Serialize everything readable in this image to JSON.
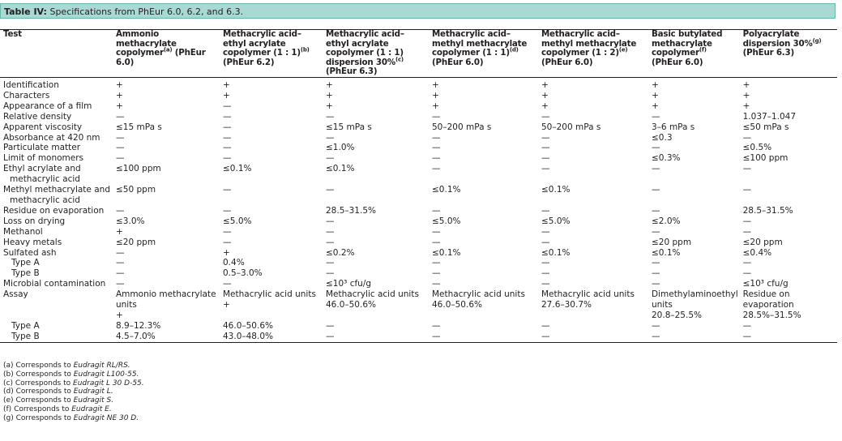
{
  "title": {
    "label": "Table IV:",
    "text": "Specifications from PhEur 6.0, 6.2, and 6.3."
  },
  "header": {
    "columns": [
      {
        "name": "Test"
      },
      {
        "name": "Ammonio methacrylate copolymer",
        "sup": "(a)",
        "edition": "(PhEur 6.0)"
      },
      {
        "name": "Methacrylic acid–ethyl acrylate copolymer (1 : 1)",
        "sup": "(b)",
        "edition": "(PhEur 6.2)"
      },
      {
        "name": "Methacrylic acid–ethyl acrylate copolymer (1 : 1) dispersion 30%",
        "sup": "(c)",
        "edition": "(PhEur 6.3)"
      },
      {
        "name": "Methacrylic acid–methyl methacrylate copolymer (1 : 1)",
        "sup": "(d)",
        "edition": "(PhEur 6.0)"
      },
      {
        "name": "Methacrylic acid–methyl methacrylate copolymer (1 : 2)",
        "sup": "(e)",
        "edition": "(PhEur 6.0)"
      },
      {
        "name": "Basic butylated methacrylate copolymer",
        "sup": "(f)",
        "edition": "(PhEur 6.0)"
      },
      {
        "name": "Polyacrylate dispersion 30%",
        "sup": "(g)",
        "edition": "(PhEur 6.3)"
      }
    ]
  },
  "table": {
    "rows": [
      {
        "label": "Identification",
        "cells": [
          "+",
          "+",
          "+",
          "+",
          "+",
          "+",
          "+"
        ]
      },
      {
        "label": "Characters",
        "cells": [
          "+",
          "+",
          "+",
          "+",
          "+",
          "+",
          "+"
        ]
      },
      {
        "label": "Appearance of a film",
        "cells": [
          "+",
          "—",
          "+",
          "+",
          "+",
          "+",
          "+"
        ]
      },
      {
        "label": "Relative density",
        "cells": [
          "—",
          "—",
          "—",
          "—",
          "—",
          "—",
          "1.037–1.047"
        ]
      },
      {
        "label": "Apparent viscosity",
        "cells": [
          "≤15 mPa s",
          "—",
          "≤15 mPa s",
          "50–200 mPa s",
          "50–200 mPa s",
          "3–6 mPa s",
          "≤50 mPa s"
        ]
      },
      {
        "label": "Absorbance at 420 nm",
        "cells": [
          "—",
          "—",
          "—",
          "—",
          "—",
          "≤0.3",
          "—"
        ]
      },
      {
        "label": "Particulate matter",
        "cells": [
          "—",
          "—",
          "≤1.0%",
          "—",
          "—",
          "—",
          "≤0.5%"
        ]
      },
      {
        "label": "Limit of monomers",
        "cells": [
          "—",
          "—",
          "—",
          "—",
          "—",
          "≤0.3%",
          "≤100 ppm"
        ]
      },
      {
        "label": "Ethyl acrylate and methacrylic acid",
        "cells": [
          "≤100 ppm",
          "≤0.1%",
          "≤0.1%",
          "—",
          "—",
          "—",
          "—"
        ]
      },
      {
        "label": "Methyl methacrylate and methacrylic acid",
        "cells": [
          "≤50 ppm",
          "—",
          "—",
          "≤0.1%",
          "≤0.1%",
          "—",
          "—"
        ]
      },
      {
        "label": "Residue on evaporation",
        "cells": [
          "—",
          "—",
          "28.5–31.5%",
          "—",
          "—",
          "—",
          "28.5–31.5%"
        ]
      },
      {
        "label": "Loss on drying",
        "cells": [
          "≤3.0%",
          "≤5.0%",
          "—",
          "≤5.0%",
          "≤5.0%",
          "≤2.0%",
          "—"
        ]
      },
      {
        "label": "Methanol",
        "cells": [
          "+",
          "—",
          "—",
          "—",
          "—",
          "—",
          "—"
        ]
      },
      {
        "label": "Heavy metals",
        "cells": [
          "≤20 ppm",
          "—",
          "—",
          "—",
          "—",
          "≤20 ppm",
          "≤20 ppm"
        ]
      },
      {
        "label": "Sulfated ash",
        "cells": [
          "—",
          "+",
          "≤0.2%",
          "≤0.1%",
          "≤0.1%",
          "≤0.1%",
          "≤0.4%"
        ]
      },
      {
        "label": "Type A",
        "indent": true,
        "cells": [
          "—",
          "0.4%",
          "—",
          "—",
          "—",
          "—",
          "—"
        ]
      },
      {
        "label": "Type B",
        "indent": true,
        "cells": [
          "—",
          "0.5–3.0%",
          "—",
          "—",
          "—",
          "—",
          "—"
        ]
      },
      {
        "label": "Microbial contamination",
        "cells": [
          "—",
          "—",
          "≤10³ cfu/g",
          "—",
          "—",
          "—",
          "≤10³ cfu/g"
        ]
      },
      {
        "label": "Assay",
        "cells": [
          [
            "Ammonio methacrylate units",
            "+"
          ],
          [
            "Methacrylic acid units",
            "+"
          ],
          [
            "Methacrylic acid units",
            "46.0–50.6%"
          ],
          [
            "Methacrylic acid units",
            "46.0–50.6%"
          ],
          [
            "Methacrylic acid units",
            "27.6–30.7%"
          ],
          [
            "Dimethylaminoethyl units",
            "20.8–25.5%"
          ],
          [
            "Residue on evaporation",
            "28.5%–31.5%"
          ]
        ]
      },
      {
        "label": "Type A",
        "indent": true,
        "cells": [
          "8.9–12.3%",
          "46.0–50.6%",
          "—",
          "—",
          "—",
          "—",
          "—"
        ]
      },
      {
        "label": "Type B",
        "indent": true,
        "cells": [
          "4.5–7.0%",
          "43.0–48.0%",
          "—",
          "—",
          "—",
          "—",
          "—"
        ]
      }
    ]
  },
  "footnotes": [
    {
      "mark": "(a)",
      "text": "Corresponds to",
      "product": "Eudragit RL/RS."
    },
    {
      "mark": "(b)",
      "text": "Corresponds to",
      "product": "Eudragit L100-55."
    },
    {
      "mark": "(c)",
      "text": "Corresponds to",
      "product": "Eudragit L 30 D-55."
    },
    {
      "mark": "(d)",
      "text": "Corresponds to",
      "product": "Eudragit L."
    },
    {
      "mark": "(e)",
      "text": "Corresponds to",
      "product": "Eudragit S."
    },
    {
      "mark": "(f)",
      "text": "Corresponds to",
      "product": "Eudragit E."
    },
    {
      "mark": "(g)",
      "text": "Corresponds to",
      "product": "Eudragit NE 30 D."
    }
  ]
}
